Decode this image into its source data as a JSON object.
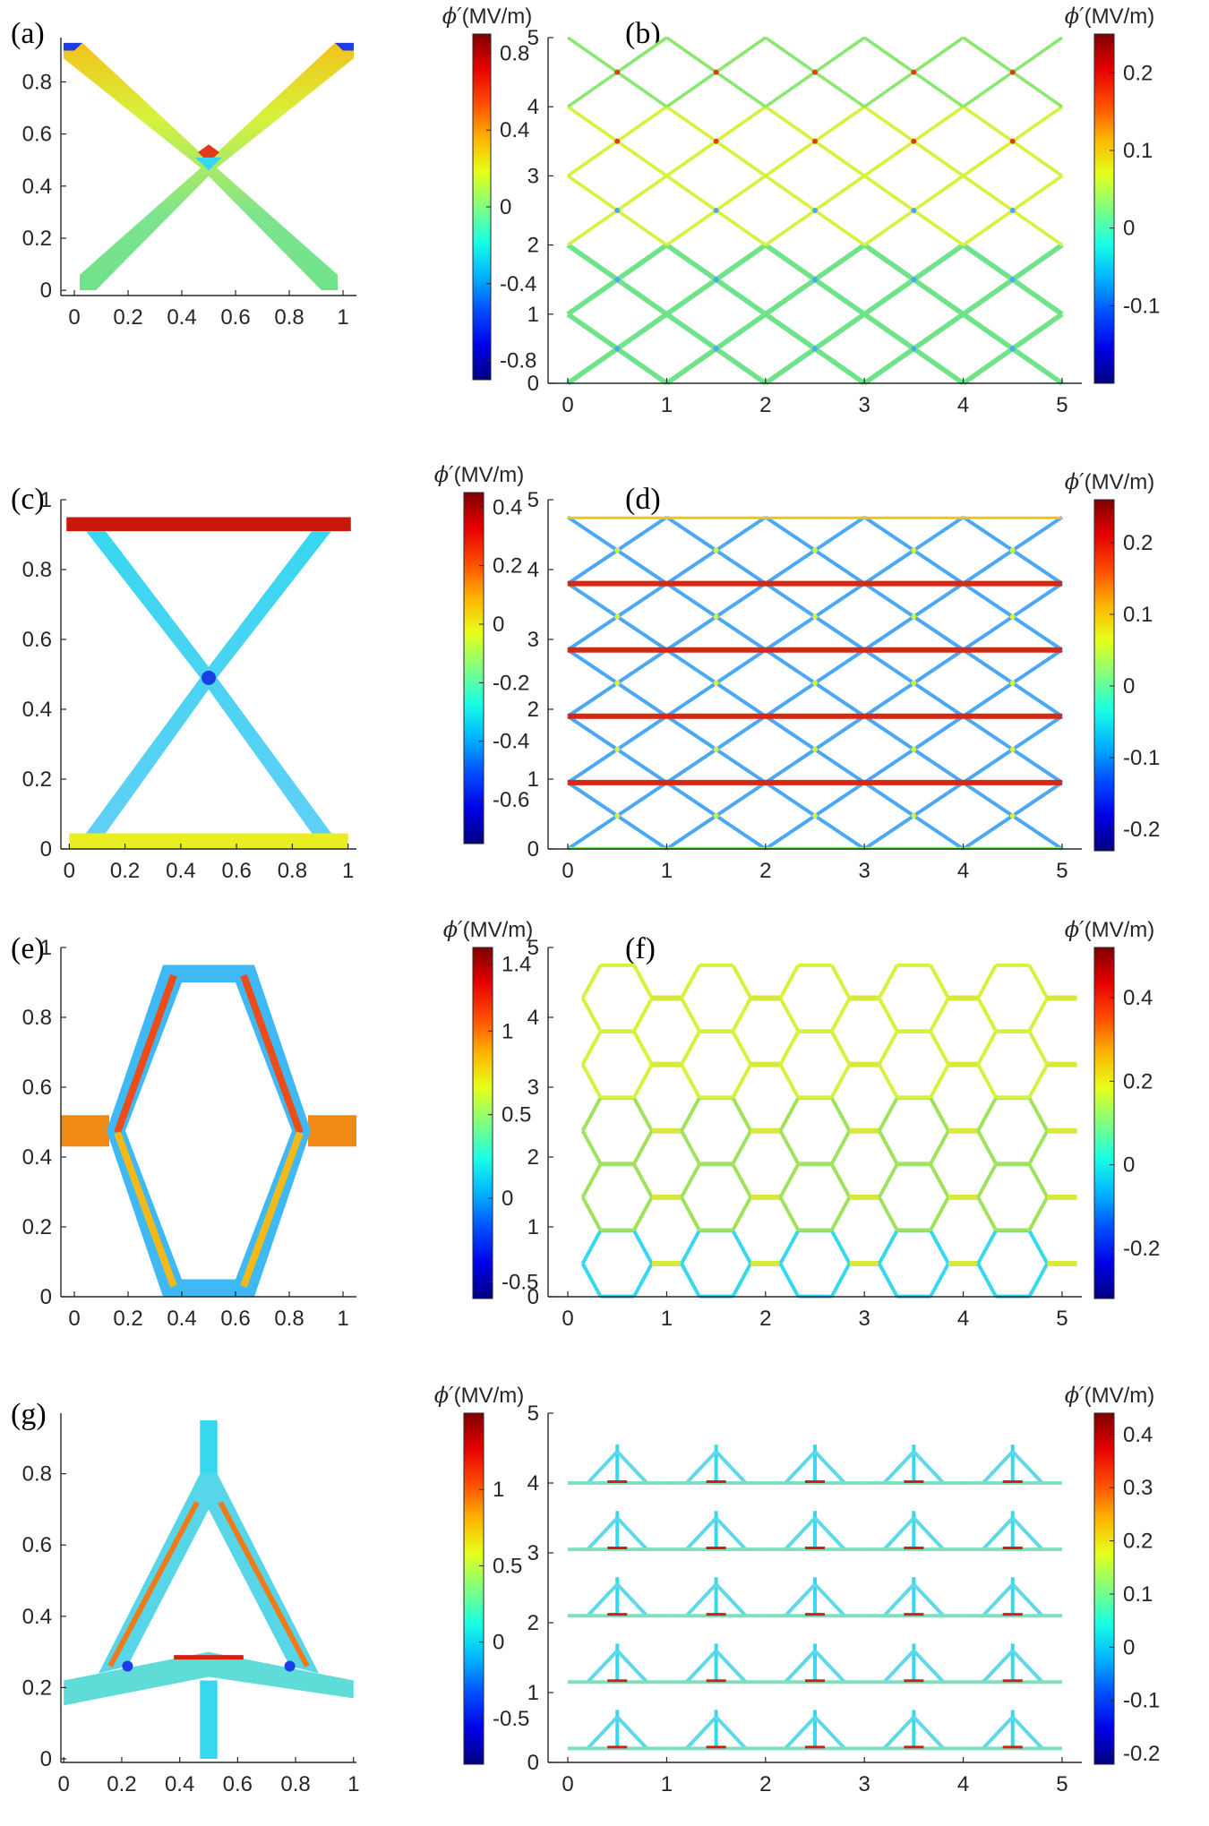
{
  "figure": {
    "colorbar_unit": "(MV/m)",
    "colorbar_symbol": "ϕ′"
  },
  "chart_data": [
    {
      "panel": "(a)",
      "type": "heatmap",
      "description_shape": "X-shaped unit cell",
      "x_ticks": [
        "0",
        "0.2",
        "0.4",
        "0.6",
        "0.8",
        "1"
      ],
      "y_ticks": [
        "0",
        "0.2",
        "0.4",
        "0.6",
        "0.8"
      ],
      "xlim": [
        -0.05,
        1.05
      ],
      "ylim": [
        -0.02,
        0.97
      ],
      "colorbar": {
        "ticks": [
          "0.8",
          "0.4",
          "0",
          "-0.4",
          "-0.8"
        ],
        "tick_values": [
          0.8,
          0.4,
          0,
          -0.4,
          -0.8
        ],
        "range": [
          -0.9,
          0.9
        ]
      },
      "shape": "x1"
    },
    {
      "panel": "(b)",
      "type": "heatmap",
      "shape": "x-lattice",
      "x_ticks": [
        "0",
        "1",
        "2",
        "3",
        "4",
        "5"
      ],
      "y_ticks": [
        "0",
        "1",
        "2",
        "3",
        "4",
        "5"
      ],
      "xlim": [
        -0.2,
        5.2
      ],
      "ylim": [
        0,
        5
      ],
      "colorbar": {
        "ticks": [
          "0.2",
          "0.1",
          "0",
          "-0.1"
        ],
        "tick_values": [
          0.2,
          0.1,
          0,
          -0.1
        ],
        "range": [
          -0.2,
          0.25
        ]
      }
    },
    {
      "panel": "(c)",
      "type": "heatmap",
      "shape": "x-bars",
      "x_ticks": [
        "0",
        "0.2",
        "0.4",
        "0.6",
        "0.8",
        "1"
      ],
      "y_ticks": [
        "0",
        "0.2",
        "0.4",
        "0.6",
        "0.8",
        "1"
      ],
      "xlim": [
        -0.03,
        1.03
      ],
      "ylim": [
        0,
        1
      ],
      "colorbar": {
        "ticks": [
          "0.4",
          "0.2",
          "0",
          "-0.2",
          "-0.4",
          "-0.6"
        ],
        "tick_values": [
          0.4,
          0.2,
          0,
          -0.2,
          -0.4,
          -0.6
        ],
        "range": [
          -0.75,
          0.45
        ]
      }
    },
    {
      "panel": "(d)",
      "type": "heatmap",
      "shape": "x-bars-lattice",
      "x_ticks": [
        "0",
        "1",
        "2",
        "3",
        "4",
        "5"
      ],
      "y_ticks": [
        "0",
        "1",
        "2",
        "3",
        "4",
        "5"
      ],
      "xlim": [
        -0.2,
        5.2
      ],
      "ylim": [
        0,
        5
      ],
      "colorbar": {
        "ticks": [
          "0.2",
          "0.1",
          "0",
          "-0.1",
          "-0.2"
        ],
        "tick_values": [
          0.2,
          0.1,
          0,
          -0.1,
          -0.2
        ],
        "range": [
          -0.23,
          0.26
        ]
      }
    },
    {
      "panel": "(e)",
      "type": "heatmap",
      "shape": "hexagon",
      "x_ticks": [
        "0",
        "0.2",
        "0.4",
        "0.6",
        "0.8",
        "1"
      ],
      "y_ticks": [
        "0",
        "0.2",
        "0.4",
        "0.6",
        "0.8",
        "1"
      ],
      "xlim": [
        -0.05,
        1.05
      ],
      "ylim": [
        0,
        1
      ],
      "colorbar": {
        "ticks": [
          "1.4",
          "1",
          "0.5",
          "0",
          "-0.5"
        ],
        "tick_values": [
          1.4,
          1,
          0.5,
          0,
          -0.5
        ],
        "range": [
          -0.6,
          1.5
        ]
      }
    },
    {
      "panel": "(f)",
      "type": "heatmap",
      "shape": "hex-lattice",
      "x_ticks": [
        "0",
        "1",
        "2",
        "3",
        "4",
        "5"
      ],
      "y_ticks": [
        "0",
        "1",
        "2",
        "3",
        "4",
        "5"
      ],
      "xlim": [
        -0.2,
        5.2
      ],
      "ylim": [
        0,
        5
      ],
      "colorbar": {
        "ticks": [
          "0.4",
          "0.2",
          "0",
          "-0.2"
        ],
        "tick_values": [
          0.4,
          0.2,
          0,
          -0.2
        ],
        "range": [
          -0.32,
          0.52
        ]
      }
    },
    {
      "panel": "(g)",
      "type": "heatmap",
      "shape": "triangle",
      "x_ticks": [
        "0",
        "0.2",
        "0.4",
        "0.6",
        "0.8",
        "1"
      ],
      "y_ticks": [
        "0",
        "0.2",
        "0.4",
        "0.6",
        "0.8"
      ],
      "xlim": [
        -0.01,
        1.01
      ],
      "ylim": [
        -0.01,
        0.97
      ],
      "colorbar": {
        "ticks": [
          "1",
          "0.5",
          "0",
          "-0.5"
        ],
        "tick_values": [
          1,
          0.5,
          0,
          -0.5
        ],
        "range": [
          -0.8,
          1.5
        ]
      }
    },
    {
      "panel": "",
      "type": "heatmap",
      "shape": "triangle-lattice",
      "x_ticks": [
        "0",
        "1",
        "2",
        "3",
        "4",
        "5"
      ],
      "y_ticks": [
        "0",
        "1",
        "2",
        "3",
        "4",
        "5"
      ],
      "xlim": [
        -0.2,
        5.2
      ],
      "ylim": [
        0,
        5
      ],
      "colorbar": {
        "ticks": [
          "0.4",
          "0.3",
          "0.2",
          "0.1",
          "0",
          "-0.1",
          "-0.2"
        ],
        "tick_values": [
          0.4,
          0.3,
          0.2,
          0.1,
          0,
          -0.1,
          -0.2
        ],
        "range": [
          -0.22,
          0.44
        ]
      }
    }
  ]
}
